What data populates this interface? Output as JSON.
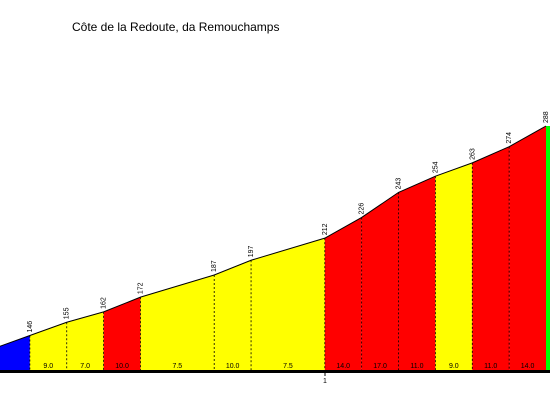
{
  "chart_data": {
    "type": "area",
    "title": "Côte de la Redoute, da Remouchamps",
    "x_unit": "km",
    "x_tick_labels": [
      "1"
    ],
    "segments": [
      {
        "x0": 0.0,
        "x1": 0.1,
        "y0": 137,
        "y1": 146,
        "gradient": "9.0",
        "color": "#0000ff",
        "grad_label_visible": false
      },
      {
        "x0": 0.1,
        "x1": 0.2,
        "y0": 146,
        "y1": 155,
        "gradient": "9.0",
        "color": "#ffff00",
        "grad_label_visible": true
      },
      {
        "x0": 0.2,
        "x1": 0.3,
        "y0": 155,
        "y1": 162,
        "gradient": "7.0",
        "color": "#ffff00",
        "grad_label_visible": true
      },
      {
        "x0": 0.3,
        "x1": 0.4,
        "y0": 162,
        "y1": 172,
        "gradient": "10.0",
        "color": "#ff0000",
        "grad_label_visible": true
      },
      {
        "x0": 0.4,
        "x1": 0.6,
        "y0": 172,
        "y1": 187,
        "gradient": "7.5",
        "color": "#ffff00",
        "grad_label_visible": true
      },
      {
        "x0": 0.6,
        "x1": 0.7,
        "y0": 187,
        "y1": 197,
        "gradient": "10.0",
        "color": "#ffff00",
        "grad_label_visible": true
      },
      {
        "x0": 0.7,
        "x1": 0.9,
        "y0": 197,
        "y1": 212,
        "gradient": "7.5",
        "color": "#ffff00",
        "grad_label_visible": true
      },
      {
        "x0": 0.9,
        "x1": 1.0,
        "y0": 212,
        "y1": 226,
        "gradient": "14.0",
        "color": "#ff0000",
        "grad_label_visible": true
      },
      {
        "x0": 1.0,
        "x1": 1.1,
        "y0": 226,
        "y1": 243,
        "gradient": "17.0",
        "color": "#ff0000",
        "grad_label_visible": true
      },
      {
        "x0": 1.1,
        "x1": 1.2,
        "y0": 243,
        "y1": 254,
        "gradient": "11.0",
        "color": "#ff0000",
        "grad_label_visible": true
      },
      {
        "x0": 1.2,
        "x1": 1.3,
        "y0": 254,
        "y1": 263,
        "gradient": "9.0",
        "color": "#ffff00",
        "grad_label_visible": true
      },
      {
        "x0": 1.3,
        "x1": 1.4,
        "y0": 263,
        "y1": 274,
        "gradient": "11.0",
        "color": "#ff0000",
        "grad_label_visible": true
      },
      {
        "x0": 1.4,
        "x1": 1.5,
        "y0": 274,
        "y1": 288,
        "gradient": "14.0",
        "color": "#ff0000",
        "grad_label_visible": true
      },
      {
        "x0": 1.5,
        "x1": 1.6,
        "y0": 288,
        "y1": 288,
        "gradient": "",
        "color": "#00ff00",
        "grad_label_visible": false
      }
    ],
    "elevation_labels": [
      {
        "x": 0.1,
        "value": "146"
      },
      {
        "x": 0.2,
        "value": "155"
      },
      {
        "x": 0.3,
        "value": "162"
      },
      {
        "x": 0.4,
        "value": "172"
      },
      {
        "x": 0.6,
        "value": "187"
      },
      {
        "x": 0.7,
        "value": "197"
      },
      {
        "x": 0.9,
        "value": "212"
      },
      {
        "x": 1.0,
        "value": "226"
      },
      {
        "x": 1.1,
        "value": "243"
      },
      {
        "x": 1.2,
        "value": "254"
      },
      {
        "x": 1.3,
        "value": "263"
      },
      {
        "x": 1.4,
        "value": "274"
      },
      {
        "x": 1.5,
        "value": "288"
      }
    ],
    "colors": {
      "outline": "#000000",
      "divider": "#000000"
    },
    "grid": false,
    "legend": "none"
  }
}
